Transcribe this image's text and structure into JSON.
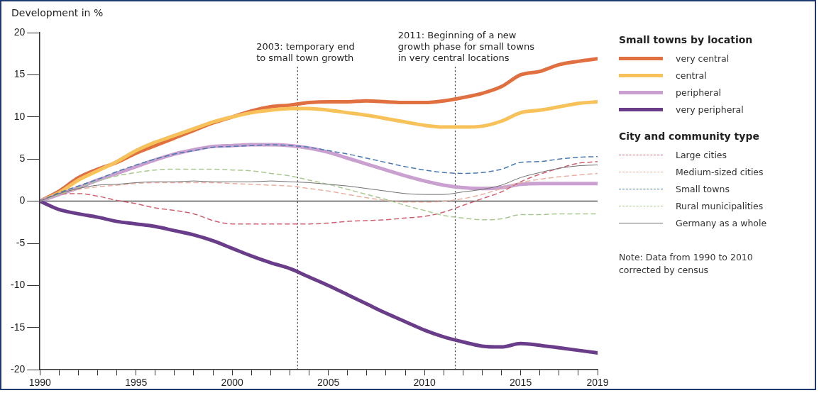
{
  "chart_data": {
    "type": "line",
    "ylabel": "Development in %",
    "x": [
      1990,
      1991,
      1992,
      1993,
      1994,
      1995,
      1996,
      1997,
      1998,
      1999,
      2000,
      2001,
      2002,
      2003,
      2004,
      2005,
      2006,
      2007,
      2008,
      2009,
      2010,
      2011,
      2012,
      2013,
      2014,
      2015,
      2016,
      2017,
      2018,
      2019
    ],
    "xlim": [
      1990,
      2019
    ],
    "xticks": [
      1990,
      {
        "value": 1991,
        "label": null
      },
      {
        "value": 1992,
        "label": null
      },
      {
        "value": 1993,
        "label": null
      },
      {
        "value": 1994,
        "label": null
      },
      1995,
      {
        "value": 1996,
        "label": null
      },
      {
        "value": 1997,
        "label": null
      },
      {
        "value": 1998,
        "label": null
      },
      {
        "value": 1999,
        "label": null
      },
      2000,
      {
        "value": 2001,
        "label": null
      },
      {
        "value": 2002,
        "label": null
      },
      {
        "value": 2003,
        "label": null
      },
      {
        "value": 2004,
        "label": null
      },
      2005,
      {
        "value": 2006,
        "label": null
      },
      {
        "value": 2007,
        "label": null
      },
      {
        "value": 2008,
        "label": null
      },
      {
        "value": 2009,
        "label": null
      },
      2010,
      {
        "value": 2011,
        "label": null
      },
      {
        "value": 2012,
        "label": null
      },
      {
        "value": 2013,
        "label": null
      },
      {
        "value": 2014,
        "label": null
      },
      2015,
      {
        "value": 2016,
        "label": null
      },
      {
        "value": 2017,
        "label": null
      },
      {
        "value": 2018,
        "label": null
      },
      2019
    ],
    "ylim": [
      -20,
      20
    ],
    "yticks": [
      -20,
      -15,
      -10,
      -5,
      0,
      5,
      10,
      15,
      20
    ],
    "grid": false,
    "legend": "right",
    "legend_title": "Small towns by location",
    "marker": "none",
    "series": [
      {
        "name": "very central",
        "color": "#e07040",
        "line_style": "solid",
        "values": [
          0,
          1.2,
          2.8,
          3.8,
          4.6,
          5.7,
          6.6,
          7.5,
          8.4,
          9.3,
          10.0,
          10.7,
          11.2,
          11.4,
          11.7,
          11.8,
          11.8,
          11.9,
          11.8,
          11.7,
          11.7,
          11.9,
          12.3,
          12.8,
          13.6,
          15.0,
          15.4,
          16.2,
          16.6,
          16.9
        ]
      },
      {
        "name": "central",
        "color": "#f7c25a",
        "line_style": "solid",
        "values": [
          0,
          1.0,
          2.5,
          3.6,
          4.7,
          6.0,
          7.0,
          7.8,
          8.6,
          9.4,
          10.0,
          10.5,
          10.8,
          11.0,
          11.0,
          10.8,
          10.5,
          10.2,
          9.8,
          9.4,
          9.0,
          8.8,
          8.8,
          8.9,
          9.5,
          10.5,
          10.8,
          11.2,
          11.6,
          11.8
        ]
      },
      {
        "name": "peripheral",
        "color": "#c9a0d0",
        "line_style": "solid",
        "values": [
          0,
          0.8,
          1.6,
          2.5,
          3.3,
          4.1,
          4.9,
          5.6,
          6.1,
          6.5,
          6.6,
          6.7,
          6.7,
          6.6,
          6.3,
          5.8,
          5.1,
          4.4,
          3.7,
          3.0,
          2.4,
          1.9,
          1.6,
          1.5,
          1.6,
          2.0,
          2.1,
          2.1,
          2.1,
          2.1
        ]
      },
      {
        "name": "very peripheral",
        "color": "#6a3d8a",
        "line_style": "solid",
        "values": [
          0,
          -1.0,
          -1.5,
          -1.9,
          -2.4,
          -2.7,
          -3.0,
          -3.5,
          -4.0,
          -4.7,
          -5.6,
          -6.5,
          -7.3,
          -8.0,
          -9.0,
          -10.0,
          -11.1,
          -12.2,
          -13.3,
          -14.3,
          -15.3,
          -16.1,
          -16.7,
          -17.2,
          -17.3,
          -16.9,
          -17.1,
          -17.4,
          -17.7,
          -18.0
        ]
      },
      {
        "name": "Large cities",
        "color": "#d06070",
        "line_style": "dashed",
        "values": [
          0,
          0.8,
          0.9,
          0.6,
          0.1,
          -0.3,
          -0.8,
          -1.1,
          -1.5,
          -2.3,
          -2.7,
          -2.7,
          -2.7,
          -2.7,
          -2.7,
          -2.6,
          -2.4,
          -2.3,
          -2.2,
          -2.0,
          -1.8,
          -1.3,
          -0.5,
          0.3,
          1.1,
          2.3,
          3.2,
          3.9,
          4.5,
          4.7
        ]
      },
      {
        "name": "Medium-sized cities",
        "color": "#e8b0a0",
        "line_style": "dashed",
        "values": [
          0,
          0.9,
          1.4,
          1.7,
          1.9,
          2.1,
          2.2,
          2.2,
          2.2,
          2.2,
          2.1,
          2.0,
          1.9,
          1.8,
          1.5,
          1.2,
          0.8,
          0.4,
          0.1,
          -0.1,
          -0.1,
          0,
          0.3,
          0.8,
          1.5,
          2.2,
          2.6,
          2.9,
          3.1,
          3.3
        ]
      },
      {
        "name": "Small towns",
        "color": "#4a7ab0",
        "line_style": "dashed",
        "values": [
          0,
          1.0,
          1.8,
          2.6,
          3.5,
          4.3,
          5.0,
          5.6,
          6.0,
          6.4,
          6.5,
          6.6,
          6.7,
          6.6,
          6.4,
          6.0,
          5.6,
          5.1,
          4.6,
          4.1,
          3.7,
          3.4,
          3.3,
          3.4,
          3.8,
          4.6,
          4.7,
          5.0,
          5.2,
          5.3
        ]
      },
      {
        "name": "Rural municipalities",
        "color": "#a8c890",
        "line_style": "dashed",
        "values": [
          0,
          0.8,
          1.6,
          2.4,
          3.0,
          3.4,
          3.7,
          3.8,
          3.8,
          3.8,
          3.7,
          3.6,
          3.3,
          3.0,
          2.5,
          2.0,
          1.4,
          0.8,
          0.2,
          -0.5,
          -1.1,
          -1.7,
          -2.0,
          -2.2,
          -2.1,
          -1.6,
          -1.6,
          -1.5,
          -1.5,
          -1.5
        ]
      },
      {
        "name": "Germany as a whole",
        "color": "#707070",
        "line_style": "solid",
        "values": [
          0,
          0.9,
          1.5,
          1.9,
          2.0,
          2.2,
          2.3,
          2.3,
          2.4,
          2.3,
          2.3,
          2.3,
          2.4,
          2.3,
          2.2,
          2.0,
          1.8,
          1.5,
          1.2,
          0.9,
          0.8,
          0.8,
          1.1,
          1.4,
          1.9,
          2.8,
          3.4,
          3.9,
          4.2,
          4.3
        ]
      }
    ],
    "ref_lines": [
      {
        "axis": "y",
        "value": 0,
        "color": "#555555",
        "line_style": "solid"
      },
      {
        "axis": "x",
        "value": 2003.4,
        "label": "2003: temporary end\nto small town growth",
        "color": "#333333",
        "line_style": "dotted"
      },
      {
        "axis": "x",
        "value": 2011.6,
        "label": "2011: Beginning of a new\ngrowth phase for small towns\nin very central locations",
        "color": "#333333",
        "line_style": "dotted"
      }
    ],
    "annotations": [
      "City and community type",
      "Note: Data from 1990 to 2010\ncorrected by census"
    ]
  }
}
